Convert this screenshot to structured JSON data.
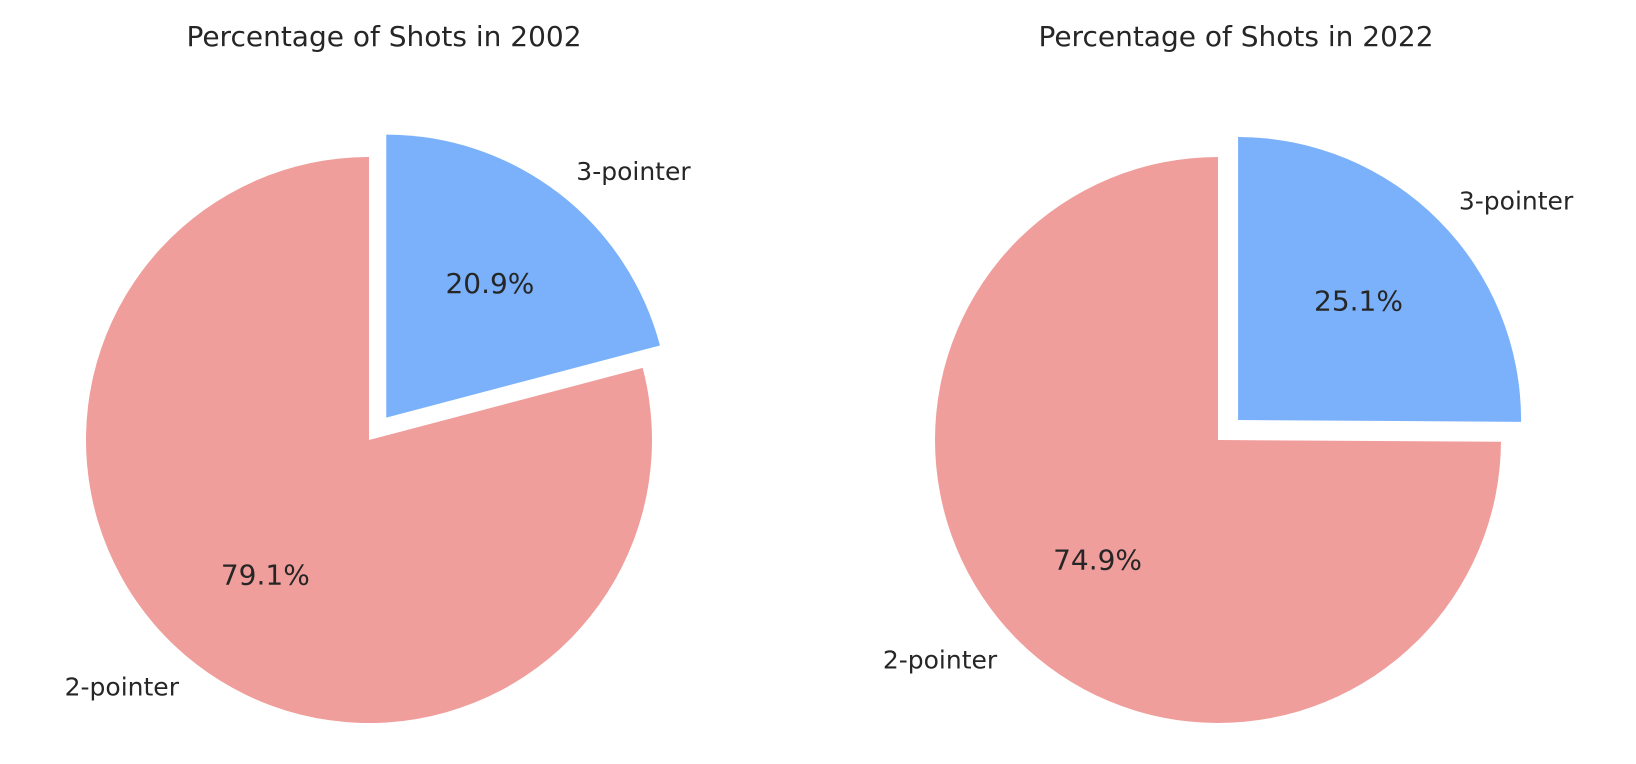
{
  "chart_data": [
    {
      "type": "pie",
      "title": "Percentage of Shots in 2002",
      "labels": [
        "3-pointer",
        "2-pointer"
      ],
      "values": [
        20.9,
        79.1
      ],
      "value_labels": [
        "20.9%",
        "79.1%"
      ],
      "colors": [
        "#7ab1fa",
        "#f09e9b"
      ],
      "exploded": [
        "3-pointer"
      ],
      "start_angle_deg": 90,
      "direction": "clockwise",
      "legend": "none"
    },
    {
      "type": "pie",
      "title": "Percentage of Shots in 2022",
      "labels": [
        "3-pointer",
        "2-pointer"
      ],
      "values": [
        25.1,
        74.9
      ],
      "value_labels": [
        "25.1%",
        "74.9%"
      ],
      "colors": [
        "#7ab1fa",
        "#f09e9b"
      ],
      "exploded": [
        "3-pointer"
      ],
      "start_angle_deg": 90,
      "direction": "clockwise",
      "legend": "none"
    }
  ]
}
